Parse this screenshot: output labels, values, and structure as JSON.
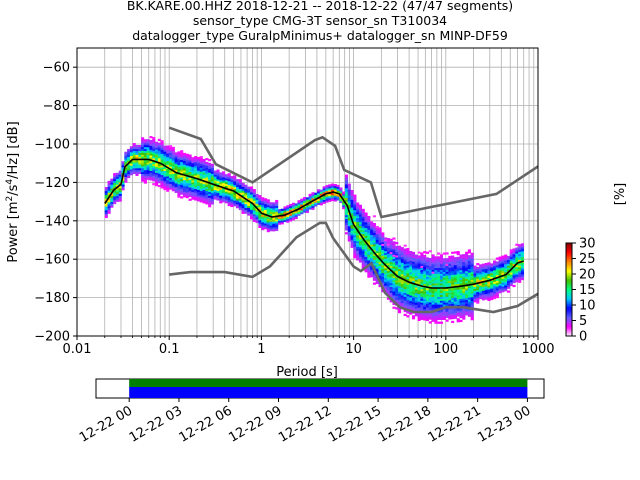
{
  "chart_data": {
    "type": "heatmap",
    "title_lines": [
      "BK.KARE.00.HHZ   2018-12-21 -- 2018-12-22  (47/47 segments)",
      "sensor_type CMG-3T sensor_sn T310034",
      "datalogger_type GuralpMinimus+ datalogger_sn MINP-DF59"
    ],
    "xlabel": "Period [s]",
    "ylabel_parts": [
      "Power [m",
      "2",
      "/s",
      "4",
      "/Hz] [dB]"
    ],
    "xscale": "log",
    "xlim": [
      0.01,
      1000
    ],
    "ylim": [
      -200,
      -50
    ],
    "x_ticks": [
      0.01,
      0.1,
      1,
      10,
      100,
      1000
    ],
    "x_tick_labels": [
      "0.01",
      "0.1",
      "1",
      "10",
      "100",
      "1000"
    ],
    "y_ticks": [
      -200,
      -180,
      -160,
      -140,
      -120,
      -100,
      -80,
      -60
    ],
    "y_tick_labels": [
      "−200",
      "−180",
      "−160",
      "−140",
      "−120",
      "−100",
      "−80",
      "−60"
    ],
    "grid": true,
    "colorbar": {
      "label": "[%]",
      "ticks": [
        0,
        5,
        10,
        15,
        20,
        25,
        30
      ],
      "tick_labels": [
        "0",
        "5",
        "10",
        "15",
        "20",
        "25",
        "30"
      ],
      "range": [
        0,
        30
      ],
      "stops": [
        "#ffffff",
        "#ff00ff",
        "#6060ff",
        "#0000ff",
        "#00c8ff",
        "#00ff80",
        "#40c000",
        "#ffff00",
        "#ff8000",
        "#ff0000",
        "#800000"
      ]
    },
    "nhnm": {
      "x": [
        0.1,
        0.22,
        0.32,
        0.8,
        3.8,
        4.6,
        6.3,
        7.9,
        15.4,
        20,
        354.8,
        10000
      ],
      "y": [
        -91.5,
        -97.4,
        -110.5,
        -120,
        -98,
        -96.5,
        -101,
        -113.5,
        -120,
        -138,
        -126,
        -80
      ]
    },
    "nlnm": {
      "x": [
        0.1,
        0.17,
        0.4,
        0.8,
        1.24,
        2.4,
        4.3,
        5,
        6,
        10,
        12,
        15.6,
        21.9,
        31.6,
        45,
        70,
        101,
        154,
        328,
        600,
        1000
      ],
      "y": [
        -168,
        -166.7,
        -166.7,
        -169.2,
        -163.7,
        -148.6,
        -141.1,
        -141.1,
        -149,
        -163.8,
        -166.2,
        -162.1,
        -177.5,
        -185,
        -187.5,
        -187.5,
        -185,
        -185,
        -187.5,
        -184.4,
        -178
      ]
    },
    "mean_curve": {
      "x": [
        0.02,
        0.025,
        0.03,
        0.033,
        0.04,
        0.06,
        0.08,
        0.12,
        0.2,
        0.3,
        0.5,
        0.8,
        1.0,
        1.3,
        1.8,
        2.5,
        3.5,
        5,
        6,
        7,
        8.5,
        10,
        13,
        17,
        22,
        30,
        40,
        55,
        70,
        100,
        150,
        200,
        300,
        450,
        600,
        700
      ],
      "y": [
        -131,
        -124,
        -121,
        -112,
        -108,
        -108,
        -110,
        -115,
        -118,
        -121,
        -124.5,
        -131,
        -136,
        -138,
        -137,
        -134,
        -130,
        -126,
        -125,
        -126,
        -132,
        -142,
        -150,
        -157,
        -163,
        -169,
        -172,
        -174,
        -175,
        -175,
        -174,
        -173,
        -171,
        -168,
        -162,
        -161
      ]
    },
    "time_axis": {
      "start": "2018-12-21T22:00",
      "end": "2018-12-23T01:00",
      "coverage_start": "2018-12-22T00:00",
      "coverage_end": "2018-12-23T00:00",
      "tick_labels": [
        "12-22 00",
        "12-22 03",
        "12-22 06",
        "12-22 09",
        "12-22 12",
        "12-22 15",
        "12-22 18",
        "12-22 21",
        "12-23 00"
      ]
    }
  }
}
